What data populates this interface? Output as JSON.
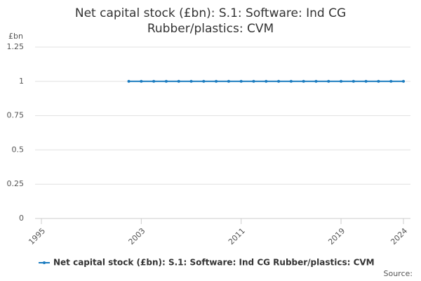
{
  "chart_data": {
    "type": "line",
    "title": "Net capital stock (£bn): S.1: Software: Ind CG Rubber/plastics: CVM",
    "y_unit": "£bn",
    "x": [
      2002,
      2003,
      2004,
      2005,
      2006,
      2007,
      2008,
      2009,
      2010,
      2011,
      2012,
      2013,
      2014,
      2015,
      2016,
      2017,
      2018,
      2019,
      2020,
      2021,
      2022,
      2023,
      2024
    ],
    "series": [
      {
        "name": "Net capital stock (£bn): S.1: Software: Ind CG Rubber/plastics: CVM",
        "color": "#1a7bbf",
        "values": [
          1,
          1,
          1,
          1,
          1,
          1,
          1,
          1,
          1,
          1,
          1,
          1,
          1,
          1,
          1,
          1,
          1,
          1,
          1,
          1,
          1,
          1,
          1
        ]
      }
    ],
    "xlim": [
      1995,
      2024
    ],
    "xticks": [
      1995,
      2003,
      2011,
      2019,
      2024
    ],
    "ylim": [
      0,
      1.25
    ],
    "yticks": [
      0,
      0.25,
      0.5,
      0.75,
      1,
      1.25
    ],
    "grid": true,
    "legend": "bottom",
    "source": "Source:"
  }
}
